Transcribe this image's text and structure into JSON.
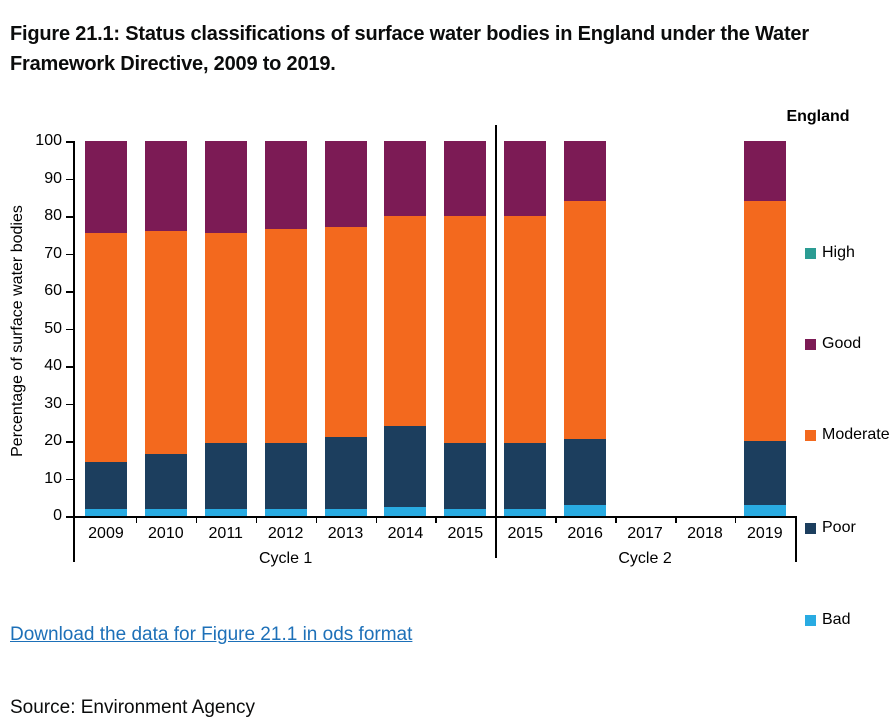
{
  "title": "Figure 21.1: Status classifications of surface water bodies in England under the Water Framework Directive, 2009 to 2019.",
  "download_link": "Download the data for Figure 21.1 in ods format",
  "source": "Source: Environment Agency",
  "colors": {
    "link": "#1d70b8",
    "text": "#0b0c0c",
    "axis": "#000000"
  },
  "chart_data": {
    "type": "bar",
    "stacked": true,
    "ylabel": "Percentage of surface water bodies",
    "ylim": [
      0,
      100
    ],
    "ytick_step": 10,
    "grid": false,
    "legend_position": "right",
    "legend_title": "England",
    "legend_order": [
      "High",
      "Good",
      "Moderate",
      "Poor",
      "Bad"
    ],
    "categories": [
      "2009",
      "2010",
      "2011",
      "2012",
      "2013",
      "2014",
      "2015",
      "2015",
      "2016",
      "2017",
      "2018",
      "2019"
    ],
    "group_labels": [
      {
        "label": "Cycle 1",
        "from": 0,
        "to": 6
      },
      {
        "label": "Cycle 2",
        "from": 7,
        "to": 11
      }
    ],
    "series": [
      {
        "name": "Bad",
        "color": "#29abe2",
        "values": [
          2,
          2,
          2,
          2,
          2,
          2.5,
          2,
          2,
          3,
          null,
          null,
          3
        ]
      },
      {
        "name": "Poor",
        "color": "#1c3e5e",
        "values": [
          12.5,
          14.5,
          17.5,
          17.5,
          19,
          21.5,
          17.5,
          17.5,
          17.5,
          null,
          null,
          17
        ]
      },
      {
        "name": "Moderate",
        "color": "#f3691e",
        "values": [
          61,
          59.5,
          56,
          57,
          56,
          56,
          60.5,
          60.5,
          63.5,
          null,
          null,
          64
        ]
      },
      {
        "name": "Good",
        "color": "#7c1b55",
        "values": [
          24.5,
          24,
          24.5,
          23.5,
          23,
          20,
          20,
          20,
          16,
          null,
          null,
          16
        ]
      },
      {
        "name": "High",
        "color": "#2b9c93",
        "values": [
          0,
          0,
          0,
          0,
          0,
          0,
          0,
          0,
          0,
          null,
          null,
          0
        ]
      }
    ]
  }
}
